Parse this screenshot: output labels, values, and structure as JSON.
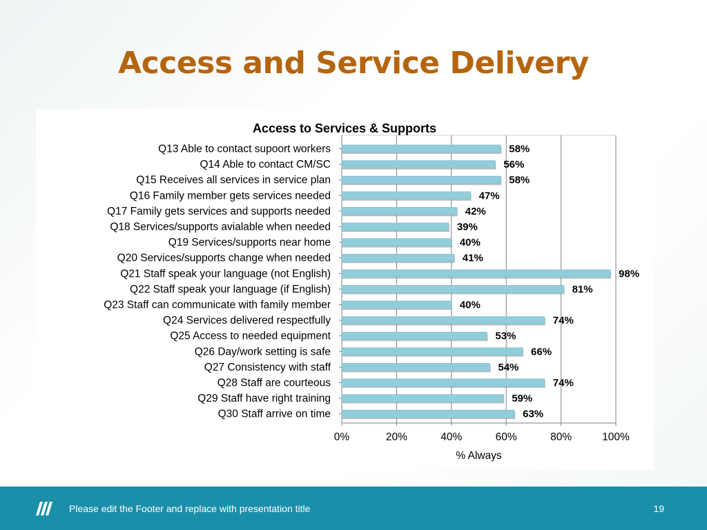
{
  "slide": {
    "title": "Access and Service Delivery"
  },
  "footer": {
    "text": "Please edit the Footer and replace with presentation title",
    "page_number": "19",
    "logo_icon": "brand-stripes-logo"
  },
  "colors": {
    "title": "#b5650f",
    "bar_fill": "#92cddc",
    "footer_bg": "#1b8faa"
  },
  "chart_data": {
    "type": "bar",
    "orientation": "horizontal",
    "title": "Access to Services & Supports",
    "xlabel": "% Always",
    "ylabel": "",
    "xlim": [
      0,
      100
    ],
    "xticks": [
      "0%",
      "20%",
      "40%",
      "60%",
      "80%",
      "100%"
    ],
    "grid": true,
    "categories": [
      "Q13 Able to contact supoort workers",
      "Q14 Able to contact CM/SC",
      "Q15 Receives all services in service plan",
      "Q16 Family member gets services needed",
      "Q17 Family gets services and supports needed",
      "Q18 Services/supports avialable when needed",
      "Q19 Services/supports near home",
      "Q20 Services/supports change when needed",
      "Q21 Staff speak your language (not English)",
      "Q22 Staff speak your language (if English)",
      "Q23 Staff can communicate with family member",
      "Q24 Services delivered respectfully",
      "Q25 Access to needed equipment",
      "Q26 Day/work setting is safe",
      "Q27 Consistency with staff",
      "Q28 Staff are courteous",
      "Q29 Staff have right training",
      "Q30 Staff arrive on time"
    ],
    "values": [
      58,
      56,
      58,
      47,
      42,
      39,
      40,
      41,
      98,
      81,
      40,
      74,
      53,
      66,
      54,
      74,
      59,
      63
    ],
    "value_labels": [
      "58%",
      "56%",
      "58%",
      "47%",
      "42%",
      "39%",
      "40%",
      "41%",
      "98%",
      "81%",
      "40%",
      "74%",
      "53%",
      "66%",
      "54%",
      "74%",
      "59%",
      "63%"
    ]
  }
}
